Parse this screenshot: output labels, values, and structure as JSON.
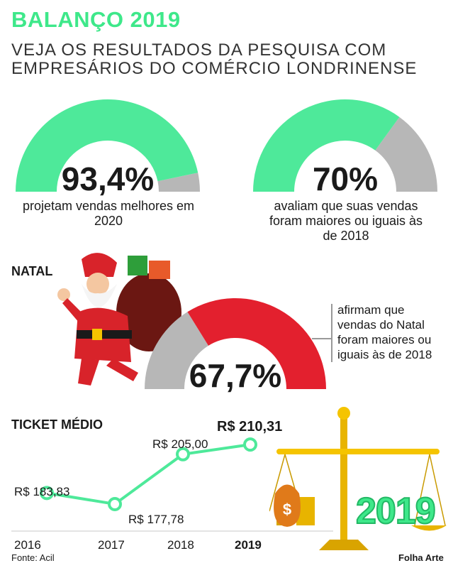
{
  "header": {
    "title": "BALANÇO 2019",
    "subtitle": "VEJA OS RESULTADOS DA PESQUISA COM EMPRESÁRIOS DO COMÉRCIO LONDRINENSE"
  },
  "colors": {
    "green": "#4ee99a",
    "gray": "#b7b7b7",
    "red": "#e3202e"
  },
  "gauges": [
    {
      "value_label": "93,4%",
      "value": 93.4,
      "caption": "projetam vendas melhores em 2020",
      "color": "green"
    },
    {
      "value_label": "70%",
      "value": 70,
      "caption": "avaliam que suas vendas foram maiores ou iguais às de 2018",
      "color": "green"
    },
    {
      "value_label": "67,7%",
      "value": 67.7,
      "caption": "afirmam que vendas do Natal foram maiores ou iguais às de 2018",
      "color": "red"
    }
  ],
  "natal": {
    "heading": "NATAL"
  },
  "ticket": {
    "heading": "TICKET MÉDIO"
  },
  "chart_data": {
    "type": "line",
    "title": "TICKET MÉDIO",
    "categories": [
      "2016",
      "2017",
      "2018",
      "2019"
    ],
    "values": [
      183.83,
      177.78,
      205.0,
      210.31
    ],
    "data_labels": [
      "R$ 183,83",
      "R$ 177,78",
      "R$ 205,00",
      "R$ 210,31"
    ],
    "ylim": [
      170,
      215
    ],
    "grid": false
  },
  "illustrations": {
    "year_badge": "2019",
    "money_bag_symbol": "$"
  },
  "footer": {
    "source": "Fonte: Acil",
    "credit": "Folha Arte"
  }
}
